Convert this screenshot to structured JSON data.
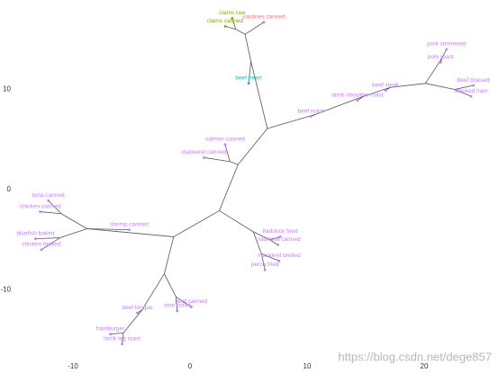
{
  "chart_data": {
    "type": "tree",
    "xlim": [
      -14.5,
      26.0
    ],
    "ylim": [
      -17,
      18.5
    ],
    "xticks": [
      -10,
      0,
      10,
      20
    ],
    "yticks": [
      -10,
      0,
      10
    ],
    "edge_color": "#555555",
    "tree": {
      "x": 2.5,
      "y": -2.1,
      "children": [
        {
          "x": 4.1,
          "y": 2.5,
          "children": [
            {
              "x": 3.4,
              "y": 2.8,
              "children": [
                {
                  "label": "salmon canned",
                  "color": "#c77cff",
                  "x": 3.0,
                  "y": 4.5
                },
                {
                  "label": "mackerel canned",
                  "color": "#c77cff",
                  "x": 1.2,
                  "y": 3.2
                }
              ]
            },
            {
              "x": 6.6,
              "y": 6.1,
              "children": [
                {
                  "x": 5.2,
                  "y": 12.8,
                  "children": [
                    {
                      "label": "beef heart",
                      "color": "#00bfc4",
                      "x": 5.0,
                      "y": 10.6
                    },
                    {
                      "x": 4.7,
                      "y": 15.5,
                      "children": [
                        {
                          "x": 3.9,
                          "y": 16.0,
                          "children": [
                            {
                              "label": "clams raw",
                              "color": "#7cae00",
                              "x": 3.6,
                              "y": 17.1
                            },
                            {
                              "label": "clams canned",
                              "color": "#7cae00",
                              "x": 3.0,
                              "y": 16.3
                            }
                          ]
                        },
                        {
                          "label": "sardines canned",
                          "color": "#f8766d",
                          "x": 6.3,
                          "y": 16.7
                        }
                      ]
                    }
                  ]
                },
                {
                  "x": 10.7,
                  "y": 7.5,
                  "children": [
                    {
                      "label": "beef roast",
                      "color": "#c77cff",
                      "x": 10.3,
                      "y": 7.3
                    },
                    {
                      "x": 14.8,
                      "y": 9.3,
                      "children": [
                        {
                          "label": "lamb shoulder roast",
                          "color": "#c77cff",
                          "x": 14.3,
                          "y": 8.9
                        },
                        {
                          "x": 17.1,
                          "y": 10.2,
                          "children": [
                            {
                              "label": "beef steak",
                              "color": "#c77cff",
                              "x": 16.7,
                              "y": 9.9
                            },
                            {
                              "x": 20.1,
                              "y": 10.6,
                              "children": [
                                {
                                  "x": 21.5,
                                  "y": 13.1,
                                  "children": [
                                    {
                                      "label": "pork simmered",
                                      "color": "#c77cff",
                                      "x": 21.9,
                                      "y": 14.0
                                    },
                                    {
                                      "label": "pork roast",
                                      "color": "#c77cff",
                                      "x": 21.4,
                                      "y": 12.7
                                    }
                                  ]
                                },
                                {
                                  "x": 22.6,
                                  "y": 10.0,
                                  "children": [
                                    {
                                      "label": "beef braised",
                                      "color": "#c77cff",
                                      "x": 24.2,
                                      "y": 10.4
                                    },
                                    {
                                      "label": "smoked ham",
                                      "color": "#c77cff",
                                      "x": 24.0,
                                      "y": 9.3
                                    }
                                  ]
                                }
                              ]
                            }
                          ]
                        }
                      ]
                    }
                  ]
                }
              ]
            }
          ]
        },
        {
          "x": -1.4,
          "y": -4.7,
          "children": [
            {
              "x": -8.8,
              "y": -3.9,
              "children": [
                {
                  "label": "shrimp canned",
                  "color": "#c77cff",
                  "x": -5.2,
                  "y": -4.0
                },
                {
                  "x": -11.0,
                  "y": -2.4,
                  "children": [
                    {
                      "label": "tuna canned",
                      "color": "#c77cff",
                      "x": -12.1,
                      "y": -1.1
                    },
                    {
                      "label": "chicken canned",
                      "color": "#c77cff",
                      "x": -12.8,
                      "y": -2.2
                    }
                  ]
                },
                {
                  "x": -11.1,
                  "y": -4.8,
                  "children": [
                    {
                      "label": "bluefish baked",
                      "color": "#c77cff",
                      "x": -13.2,
                      "y": -4.9
                    },
                    {
                      "label": "chicken broiled",
                      "color": "#c77cff",
                      "x": -12.7,
                      "y": -6.0
                    }
                  ]
                }
              ]
            },
            {
              "x": -2.2,
              "y": -8.4,
              "children": [
                {
                  "x": -4.1,
                  "y": -12.0,
                  "children": [
                    {
                      "label": "beef tongue",
                      "color": "#c77cff",
                      "x": -4.5,
                      "y": -12.3
                    },
                    {
                      "x": -5.7,
                      "y": -14.3,
                      "children": [
                        {
                          "label": "hamburger",
                          "color": "#c77cff",
                          "x": -6.8,
                          "y": -14.4
                        },
                        {
                          "label": "lamb leg roast",
                          "color": "#c77cff",
                          "x": -5.8,
                          "y": -15.4
                        }
                      ]
                    }
                  ]
                },
                {
                  "x": -1.2,
                  "y": -10.7,
                  "children": [
                    {
                      "label": "veal cutlet",
                      "color": "#c77cff",
                      "x": -1.1,
                      "y": -12.1
                    },
                    {
                      "label": "beef canned",
                      "color": "#c77cff",
                      "x": 0.1,
                      "y": -11.7
                    }
                  ]
                }
              ]
            }
          ]
        },
        {
          "x": 5.4,
          "y": -4.2,
          "children": [
            {
              "x": 6.8,
              "y": -5.0,
              "children": [
                {
                  "label": "haddock fried",
                  "color": "#c77cff",
                  "x": 7.7,
                  "y": -4.7
                },
                {
                  "label": "crabmeat canned",
                  "color": "#c77cff",
                  "x": 7.5,
                  "y": -5.5
                }
              ]
            },
            {
              "x": 6.1,
              "y": -6.4,
              "children": [
                {
                  "label": "mackerel broiled",
                  "color": "#c77cff",
                  "x": 7.6,
                  "y": -7.1
                },
                {
                  "label": "perch fried",
                  "color": "#c77cff",
                  "x": 6.4,
                  "y": -8.0
                }
              ]
            }
          ]
        }
      ]
    }
  },
  "watermark": "https://blog.csdn.net/dege857"
}
